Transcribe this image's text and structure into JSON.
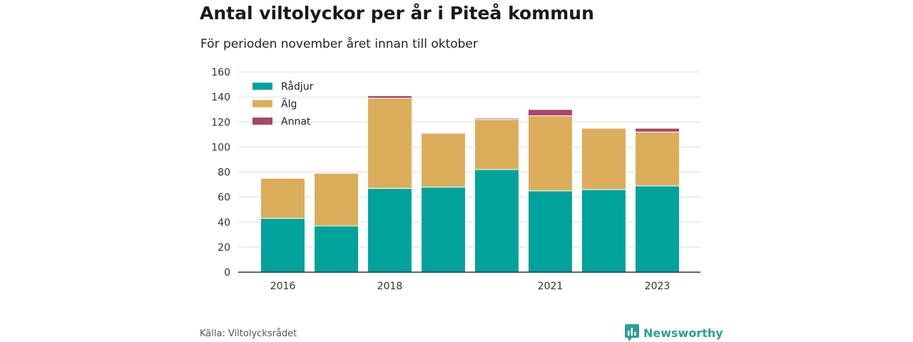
{
  "title": "Antal viltolyckor per år i Piteå kommun",
  "subtitle": "För perioden november året innan till oktober",
  "source": "Källa: Viltolycksrådet",
  "brand": "Newsworthy",
  "colors": {
    "radjur": "#00a39b",
    "alg": "#dbad5b",
    "annat": "#a8466c",
    "brand": "#2e9e95"
  },
  "chart_data": {
    "type": "bar",
    "stacked": true,
    "title": "",
    "xlabel": "",
    "ylabel": "",
    "ylim": [
      0,
      160
    ],
    "yticks": [
      0,
      20,
      40,
      60,
      80,
      100,
      120,
      140,
      160
    ],
    "grid": true,
    "legend_position": "top-left",
    "categories": [
      "2016",
      "2017",
      "2018",
      "2019",
      "2020",
      "2021",
      "2022",
      "2023"
    ],
    "x_tick_labels": [
      "2016",
      "",
      "2018",
      "",
      "",
      "2021",
      "",
      "2023"
    ],
    "series": [
      {
        "name": "Rådjur",
        "color": "#00a39b",
        "values": [
          43,
          37,
          67,
          68,
          82,
          65,
          66,
          69
        ]
      },
      {
        "name": "Älg",
        "color": "#dbad5b",
        "values": [
          32,
          42,
          72,
          43,
          40,
          60,
          49,
          43
        ]
      },
      {
        "name": "Annat",
        "color": "#a8466c",
        "values": [
          0,
          0,
          2,
          0,
          1,
          5,
          0,
          3
        ]
      }
    ]
  }
}
